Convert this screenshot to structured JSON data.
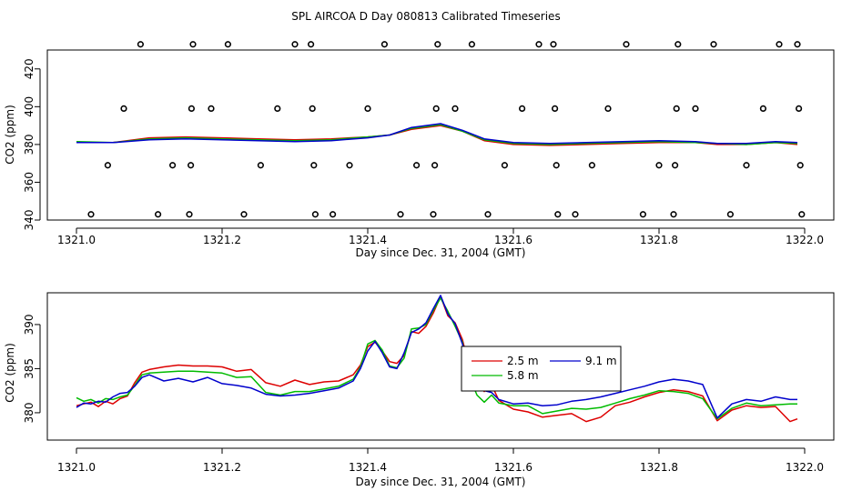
{
  "figure_title": "SPL AIRCOA D  Day 080813  Calibrated Timeseries",
  "colors": {
    "series_2_5": "#dd0000",
    "series_5_8": "#00bb00",
    "series_9_1": "#0000cc",
    "axis": "#000000",
    "qc": "#000000"
  },
  "chart_data": [
    {
      "type": "line",
      "panel": "top",
      "title": "",
      "xlabel": "Day since Dec. 31, 2004 (GMT)",
      "ylabel": "CO2 (ppm)",
      "xlim": [
        1321.0,
        1322.0
      ],
      "ylim": [
        340,
        430
      ],
      "xticks": [
        1321.0,
        1321.2,
        1321.4,
        1321.6,
        1321.8,
        1322.0
      ],
      "xtick_labels": [
        "1321.0",
        "1321.2",
        "1321.4",
        "1321.6",
        "1321.8",
        "1322.0"
      ],
      "yticks": [
        340,
        360,
        380,
        400,
        420
      ],
      "ytick_labels": [
        "340",
        "360",
        "380",
        "400",
        "420"
      ],
      "series": [
        {
          "name": "2.5 m",
          "color": "#dd0000",
          "x": [
            1321.0,
            1321.05,
            1321.1,
            1321.15,
            1321.2,
            1321.25,
            1321.3,
            1321.35,
            1321.4,
            1321.43,
            1321.46,
            1321.5,
            1321.53,
            1321.56,
            1321.6,
            1321.65,
            1321.7,
            1321.75,
            1321.8,
            1321.85,
            1321.88,
            1321.92,
            1321.96,
            1321.99
          ],
          "y": [
            381,
            381,
            383.5,
            384,
            383.5,
            383,
            382.5,
            383,
            384,
            385,
            388,
            390,
            387,
            382,
            380,
            379.5,
            380,
            380.5,
            381,
            381,
            380,
            380,
            381,
            380
          ]
        },
        {
          "name": "5.8 m",
          "color": "#00bb00",
          "x": [
            1321.0,
            1321.05,
            1321.1,
            1321.15,
            1321.2,
            1321.25,
            1321.3,
            1321.35,
            1321.4,
            1321.43,
            1321.46,
            1321.5,
            1321.53,
            1321.56,
            1321.6,
            1321.65,
            1321.7,
            1321.75,
            1321.8,
            1321.85,
            1321.88,
            1321.92,
            1321.96,
            1321.99
          ],
          "y": [
            381.5,
            381,
            383,
            383.5,
            383,
            382.5,
            382,
            382.5,
            384,
            385,
            388.5,
            390.5,
            387,
            382.5,
            380.5,
            380,
            380.5,
            381,
            381.5,
            381,
            380.5,
            380,
            381,
            380.5
          ]
        },
        {
          "name": "9.1 m",
          "color": "#0000cc",
          "x": [
            1321.0,
            1321.05,
            1321.1,
            1321.15,
            1321.2,
            1321.25,
            1321.3,
            1321.35,
            1321.4,
            1321.43,
            1321.46,
            1321.5,
            1321.53,
            1321.56,
            1321.6,
            1321.65,
            1321.7,
            1321.75,
            1321.8,
            1321.85,
            1321.88,
            1321.92,
            1321.96,
            1321.99
          ],
          "y": [
            381,
            381,
            382.5,
            383,
            382.5,
            382,
            381.5,
            382,
            383.5,
            385,
            389,
            391,
            387.5,
            383,
            381,
            380.5,
            381,
            381.5,
            382,
            381.5,
            380.5,
            380.5,
            381.5,
            381
          ]
        }
      ],
      "qc_markers": [
        {
          "x": 1321.02,
          "y": 343
        },
        {
          "x": 1321.043,
          "y": 369
        },
        {
          "x": 1321.065,
          "y": 399
        },
        {
          "x": 1321.088,
          "y": 433
        },
        {
          "x": 1321.112,
          "y": 343
        },
        {
          "x": 1321.132,
          "y": 369
        },
        {
          "x": 1321.155,
          "y": 343
        },
        {
          "x": 1321.157,
          "y": 369
        },
        {
          "x": 1321.158,
          "y": 399
        },
        {
          "x": 1321.16,
          "y": 433
        },
        {
          "x": 1321.185,
          "y": 399
        },
        {
          "x": 1321.208,
          "y": 433
        },
        {
          "x": 1321.23,
          "y": 343
        },
        {
          "x": 1321.253,
          "y": 369
        },
        {
          "x": 1321.276,
          "y": 399
        },
        {
          "x": 1321.3,
          "y": 433
        },
        {
          "x": 1321.322,
          "y": 433
        },
        {
          "x": 1321.324,
          "y": 399
        },
        {
          "x": 1321.326,
          "y": 369
        },
        {
          "x": 1321.328,
          "y": 343
        },
        {
          "x": 1321.352,
          "y": 343
        },
        {
          "x": 1321.375,
          "y": 369
        },
        {
          "x": 1321.4,
          "y": 399
        },
        {
          "x": 1321.423,
          "y": 433
        },
        {
          "x": 1321.445,
          "y": 343
        },
        {
          "x": 1321.467,
          "y": 369
        },
        {
          "x": 1321.49,
          "y": 343
        },
        {
          "x": 1321.492,
          "y": 369
        },
        {
          "x": 1321.494,
          "y": 399
        },
        {
          "x": 1321.496,
          "y": 433
        },
        {
          "x": 1321.52,
          "y": 399
        },
        {
          "x": 1321.543,
          "y": 433
        },
        {
          "x": 1321.565,
          "y": 343
        },
        {
          "x": 1321.588,
          "y": 369
        },
        {
          "x": 1321.612,
          "y": 399
        },
        {
          "x": 1321.635,
          "y": 433
        },
        {
          "x": 1321.655,
          "y": 433
        },
        {
          "x": 1321.657,
          "y": 399
        },
        {
          "x": 1321.659,
          "y": 369
        },
        {
          "x": 1321.661,
          "y": 343
        },
        {
          "x": 1321.685,
          "y": 343
        },
        {
          "x": 1321.708,
          "y": 369
        },
        {
          "x": 1321.73,
          "y": 399
        },
        {
          "x": 1321.755,
          "y": 433
        },
        {
          "x": 1321.778,
          "y": 343
        },
        {
          "x": 1321.8,
          "y": 369
        },
        {
          "x": 1321.82,
          "y": 343
        },
        {
          "x": 1321.822,
          "y": 369
        },
        {
          "x": 1321.824,
          "y": 399
        },
        {
          "x": 1321.826,
          "y": 433
        },
        {
          "x": 1321.85,
          "y": 399
        },
        {
          "x": 1321.875,
          "y": 433
        },
        {
          "x": 1321.898,
          "y": 343
        },
        {
          "x": 1321.92,
          "y": 369
        },
        {
          "x": 1321.943,
          "y": 399
        },
        {
          "x": 1321.965,
          "y": 433
        },
        {
          "x": 1321.99,
          "y": 433
        },
        {
          "x": 1321.992,
          "y": 399
        },
        {
          "x": 1321.994,
          "y": 369
        },
        {
          "x": 1321.996,
          "y": 343
        }
      ]
    },
    {
      "type": "line",
      "panel": "bottom",
      "title": "",
      "xlabel": "Day since Dec. 31, 2004 (GMT)",
      "ylabel": "CO2 (ppm)",
      "xlim": [
        1321.0,
        1322.0
      ],
      "ylim": [
        376.9,
        393.6
      ],
      "xticks": [
        1321.0,
        1321.2,
        1321.4,
        1321.6,
        1321.8,
        1322.0
      ],
      "xtick_labels": [
        "1321.0",
        "1321.2",
        "1321.4",
        "1321.6",
        "1321.8",
        "1322.0"
      ],
      "yticks": [
        380,
        385,
        390
      ],
      "ytick_labels": [
        "380",
        "385",
        "390"
      ],
      "legend": {
        "position": "center-right",
        "entries": [
          "2.5 m",
          "5.8 m",
          "9.1 m"
        ]
      },
      "series": [
        {
          "name": "2.5 m",
          "color": "#dd0000",
          "x": [
            1321.0,
            1321.01,
            1321.02,
            1321.03,
            1321.04,
            1321.05,
            1321.06,
            1321.07,
            1321.08,
            1321.09,
            1321.1,
            1321.12,
            1321.14,
            1321.16,
            1321.18,
            1321.2,
            1321.22,
            1321.24,
            1321.26,
            1321.28,
            1321.3,
            1321.32,
            1321.34,
            1321.36,
            1321.38,
            1321.39,
            1321.4,
            1321.41,
            1321.42,
            1321.43,
            1321.44,
            1321.45,
            1321.46,
            1321.47,
            1321.48,
            1321.49,
            1321.5,
            1321.51,
            1321.52,
            1321.53,
            1321.54,
            1321.55,
            1321.56,
            1321.57,
            1321.58,
            1321.6,
            1321.62,
            1321.64,
            1321.66,
            1321.68,
            1321.7,
            1321.72,
            1321.74,
            1321.76,
            1321.78,
            1321.8,
            1321.82,
            1321.84,
            1321.86,
            1321.88,
            1321.9,
            1321.92,
            1321.94,
            1321.96,
            1321.98,
            1321.99
          ],
          "y": [
            380.8,
            381.0,
            381.2,
            380.7,
            381.3,
            381.0,
            381.6,
            381.9,
            383.4,
            384.6,
            384.9,
            385.2,
            385.4,
            385.3,
            385.3,
            385.2,
            384.7,
            384.9,
            383.4,
            383.0,
            383.7,
            383.2,
            383.5,
            383.6,
            384.3,
            385.4,
            387.5,
            388.0,
            387.0,
            385.8,
            385.6,
            386.5,
            389.2,
            389.0,
            389.8,
            391.3,
            393.2,
            391.0,
            390.2,
            388.3,
            385.0,
            383.2,
            382.4,
            383.2,
            381.4,
            380.4,
            380.1,
            379.5,
            379.7,
            379.9,
            379.0,
            379.5,
            380.8,
            381.2,
            381.8,
            382.3,
            382.6,
            382.4,
            381.9,
            379.1,
            380.3,
            380.8,
            380.6,
            380.7,
            379.0,
            379.3
          ]
        },
        {
          "name": "5.8 m",
          "color": "#00bb00",
          "x": [
            1321.0,
            1321.01,
            1321.02,
            1321.03,
            1321.04,
            1321.05,
            1321.06,
            1321.07,
            1321.08,
            1321.09,
            1321.1,
            1321.12,
            1321.14,
            1321.16,
            1321.18,
            1321.2,
            1321.22,
            1321.24,
            1321.26,
            1321.28,
            1321.3,
            1321.32,
            1321.34,
            1321.36,
            1321.38,
            1321.39,
            1321.4,
            1321.41,
            1321.42,
            1321.43,
            1321.44,
            1321.45,
            1321.46,
            1321.47,
            1321.48,
            1321.49,
            1321.5,
            1321.51,
            1321.52,
            1321.53,
            1321.54,
            1321.55,
            1321.56,
            1321.57,
            1321.58,
            1321.6,
            1321.62,
            1321.64,
            1321.66,
            1321.68,
            1321.7,
            1321.72,
            1321.74,
            1321.76,
            1321.78,
            1321.8,
            1321.82,
            1321.84,
            1321.86,
            1321.88,
            1321.9,
            1321.92,
            1321.94,
            1321.96,
            1321.98,
            1321.99
          ],
          "y": [
            381.7,
            381.3,
            381.5,
            381.1,
            381.6,
            381.5,
            381.8,
            382.0,
            383.1,
            384.3,
            384.5,
            384.6,
            384.7,
            384.7,
            384.6,
            384.5,
            384.0,
            384.1,
            382.3,
            382.0,
            382.4,
            382.4,
            382.7,
            383.0,
            383.8,
            385.2,
            387.8,
            388.2,
            387.1,
            385.3,
            385.1,
            386.2,
            389.5,
            389.6,
            390.0,
            391.6,
            393.0,
            391.5,
            389.8,
            388.0,
            384.0,
            382.0,
            381.2,
            382.0,
            381.1,
            380.8,
            380.8,
            379.9,
            380.2,
            380.5,
            380.4,
            380.6,
            381.1,
            381.6,
            382.0,
            382.5,
            382.4,
            382.2,
            381.6,
            379.3,
            380.5,
            381.1,
            380.8,
            380.9,
            381.0,
            381.0
          ]
        },
        {
          "name": "9.1 m",
          "color": "#0000cc",
          "x": [
            1321.0,
            1321.01,
            1321.02,
            1321.03,
            1321.04,
            1321.05,
            1321.06,
            1321.07,
            1321.08,
            1321.09,
            1321.1,
            1321.12,
            1321.14,
            1321.16,
            1321.18,
            1321.2,
            1321.22,
            1321.24,
            1321.26,
            1321.28,
            1321.3,
            1321.32,
            1321.34,
            1321.36,
            1321.38,
            1321.39,
            1321.4,
            1321.41,
            1321.42,
            1321.43,
            1321.44,
            1321.45,
            1321.46,
            1321.47,
            1321.48,
            1321.49,
            1321.5,
            1321.51,
            1321.52,
            1321.53,
            1321.54,
            1321.55,
            1321.56,
            1321.57,
            1321.58,
            1321.6,
            1321.62,
            1321.64,
            1321.66,
            1321.68,
            1321.7,
            1321.72,
            1321.74,
            1321.76,
            1321.78,
            1321.8,
            1321.82,
            1321.84,
            1321.86,
            1321.88,
            1321.9,
            1321.92,
            1321.94,
            1321.96,
            1321.98,
            1321.99
          ],
          "y": [
            380.6,
            381.1,
            381.0,
            381.3,
            381.2,
            381.8,
            382.2,
            382.3,
            383.0,
            384.0,
            384.3,
            383.6,
            383.9,
            383.5,
            384.0,
            383.3,
            383.1,
            382.8,
            382.1,
            381.9,
            382.0,
            382.2,
            382.5,
            382.8,
            383.6,
            385.0,
            387.0,
            388.1,
            386.8,
            385.2,
            385.0,
            386.8,
            389.1,
            389.5,
            390.2,
            391.8,
            393.3,
            391.2,
            390.1,
            387.8,
            385.2,
            383.0,
            382.5,
            382.3,
            381.5,
            381.0,
            381.1,
            380.8,
            380.9,
            381.3,
            381.5,
            381.8,
            382.2,
            382.6,
            383.0,
            383.5,
            383.8,
            383.6,
            383.2,
            379.4,
            381.0,
            381.5,
            381.3,
            381.8,
            381.5,
            381.5
          ]
        }
      ]
    }
  ]
}
